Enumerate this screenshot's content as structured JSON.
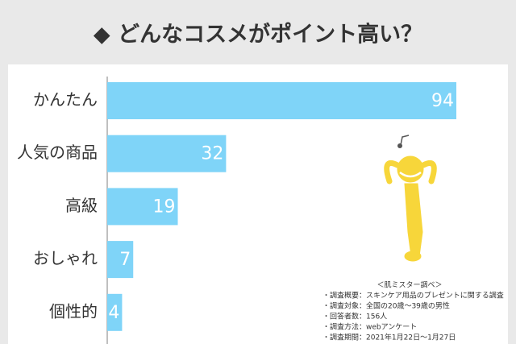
{
  "chart_data": {
    "type": "bar",
    "orientation": "horizontal",
    "title": "◆ どんなコスメがポイント高い？",
    "categories": [
      "かんたん",
      "人気の商品",
      "高級",
      "おしゃれ",
      "個性的"
    ],
    "values": [
      94,
      32,
      19,
      7,
      4
    ],
    "color": "#7fd4f8"
  },
  "notes": {
    "heading": "＜肌ミスター調べ＞",
    "lines": [
      "・調査概要：スキンケア用品のプレゼントに関する調査",
      "・調査対象：全国の20歳～39歳の男性",
      "・回答者数：156人",
      "・調査方法：webアンケート",
      "・調査期間：2021年1月22日～1月27日"
    ]
  }
}
